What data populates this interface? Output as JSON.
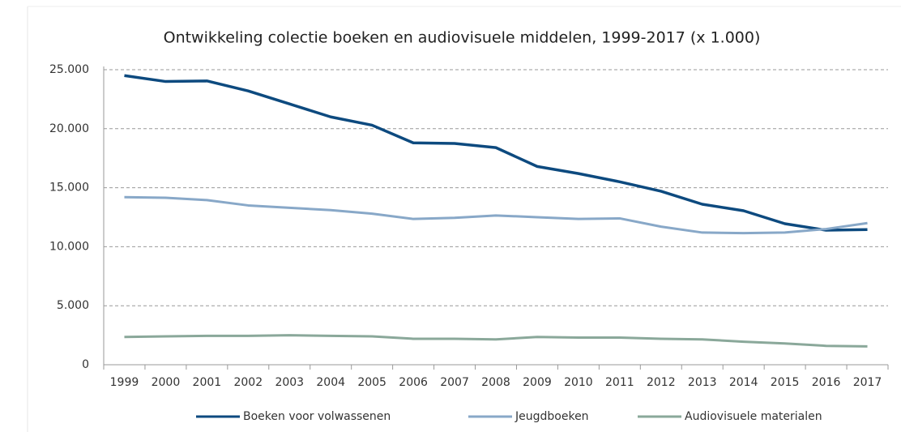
{
  "chart_data": {
    "type": "line",
    "title": "Ontwikkeling colectie boeken en audiovisuele middelen, 1999-2017 (x 1.000)",
    "categories": [
      "1999",
      "2000",
      "2001",
      "2002",
      "2003",
      "2004",
      "2005",
      "2006",
      "2007",
      "2008",
      "2009",
      "2010",
      "2011",
      "2012",
      "2013",
      "2014",
      "2015",
      "2016",
      "2017"
    ],
    "series": [
      {
        "name": "Boeken voor volwassenen",
        "color": "#0d4a7f",
        "values": [
          24500,
          24000,
          24050,
          23200,
          22100,
          21000,
          20300,
          18800,
          18750,
          18400,
          16800,
          16200,
          15500,
          14700,
          13600,
          13050,
          11950,
          11400,
          11450
        ]
      },
      {
        "name": "Jeugdboeken",
        "color": "#88a8c8",
        "values": [
          14200,
          14150,
          13950,
          13500,
          13300,
          13100,
          12800,
          12350,
          12450,
          12650,
          12500,
          12350,
          12400,
          11700,
          11200,
          11150,
          11200,
          11500,
          12000
        ]
      },
      {
        "name": "Audiovisuele materialen",
        "color": "#8aa89a",
        "values": [
          2350,
          2400,
          2450,
          2450,
          2500,
          2450,
          2400,
          2200,
          2200,
          2150,
          2350,
          2300,
          2300,
          2200,
          2150,
          1950,
          1800,
          1600,
          1550
        ]
      }
    ],
    "ylim": [
      0,
      25000
    ],
    "yticks": [
      0,
      {
        "value": 5000,
        "label": "5.000"
      },
      {
        "value": 10000,
        "label": "10.000"
      },
      {
        "value": 15000,
        "label": "15.000"
      },
      {
        "value": 20000,
        "label": "20.000"
      },
      {
        "value": 25000,
        "label": "25.000"
      }
    ],
    "grid": true
  }
}
